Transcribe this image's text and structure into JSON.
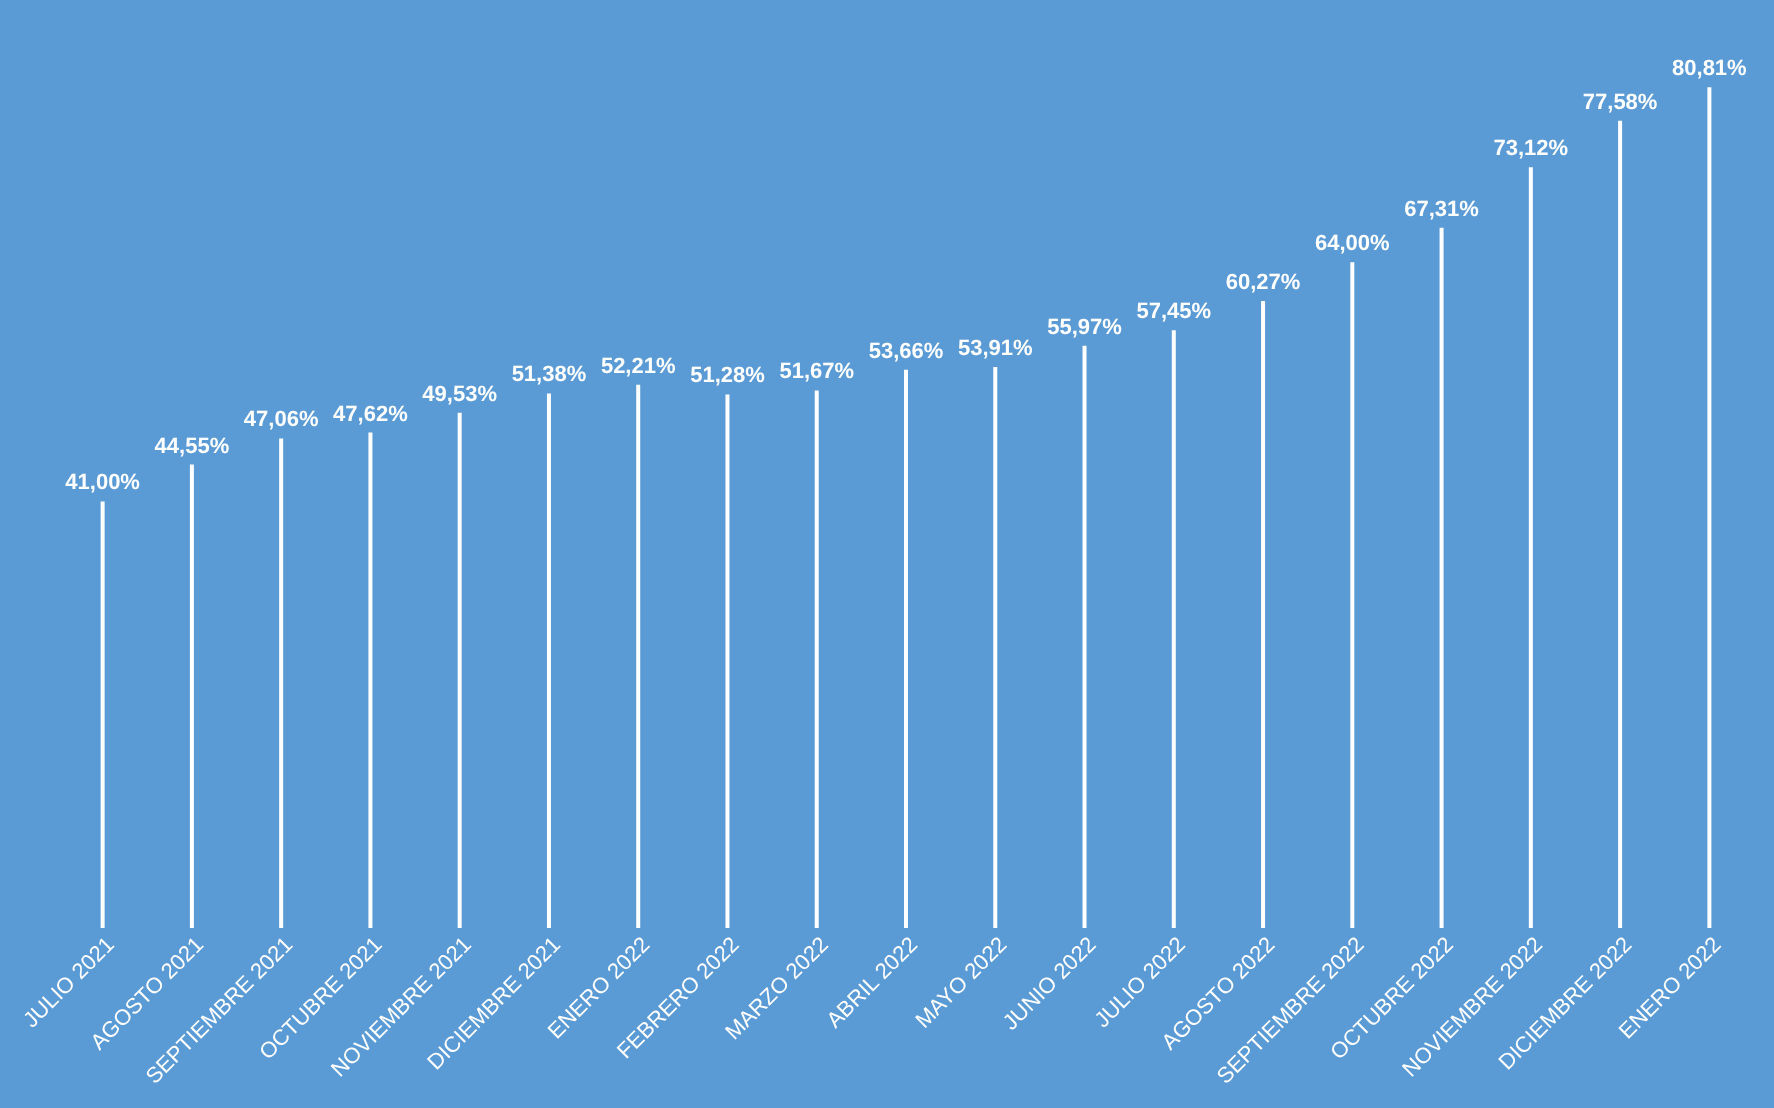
{
  "chart_data": {
    "type": "bar",
    "categories": [
      "JULIO 2021",
      "AGOSTO 2021",
      "SEPTIEMBRE 2021",
      "OCTUBRE 2021",
      "NOVIEMBRE 2021",
      "DICIEMBRE 2021",
      "ENERO 2022",
      "FEBRERO 2022",
      "MARZO 2022",
      "ABRIL 2022",
      "MAYO 2022",
      "JUNIO 2022",
      "JULIO 2022",
      "AGOSTO 2022",
      "SEPTIEMBRE 2022",
      "OCTUBRE 2022",
      "NOVIEMBRE 2022",
      "DICIEMBRE 2022",
      "ENERO 2022"
    ],
    "values": [
      41.0,
      44.55,
      47.06,
      47.62,
      49.53,
      51.38,
      52.21,
      51.28,
      51.67,
      53.66,
      53.91,
      55.97,
      57.45,
      60.27,
      64.0,
      67.31,
      73.12,
      77.58,
      80.81
    ],
    "value_labels": [
      "41,00%",
      "44,55%",
      "47,06%",
      "47,62%",
      "49,53%",
      "51,38%",
      "52,21%",
      "51,28%",
      "51,67%",
      "53,66%",
      "53,91%",
      "55,97%",
      "57,45%",
      "60,27%",
      "64,00%",
      "67,31%",
      "73,12%",
      "77,58%",
      "80,81%"
    ],
    "color": "#ffffff",
    "grid": false
  }
}
